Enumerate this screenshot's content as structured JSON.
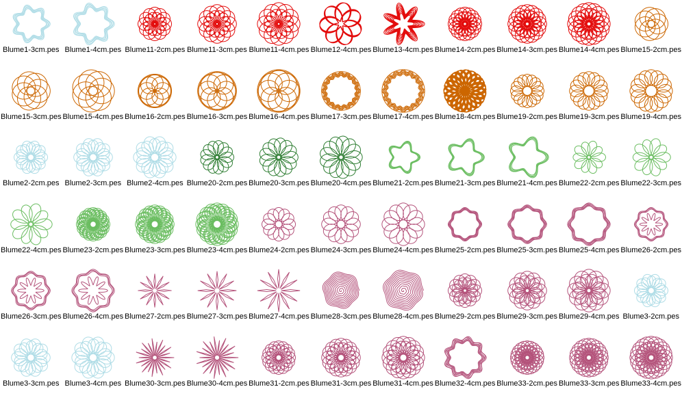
{
  "grid": {
    "columns": 11,
    "rows": 6,
    "file_extension": ".pes",
    "thumb_sizes": {
      "2": 52,
      "3": 60,
      "4": 66
    },
    "items": [
      "Blume1-3cm.pes",
      "Blume1-4cm.pes",
      "Blume11-2cm.pes",
      "Blume11-3cm.pes",
      "Blume11-4cm.pes",
      "Blume12-4cm.pes",
      "Blume13-4cm.pes",
      "Blume14-2cm.pes",
      "Blume14-3cm.pes",
      "Blume14-4cm.pes",
      "Blume15-2cm.pes",
      "Blume15-3cm.pes",
      "Blume15-4cm.pes",
      "Blume16-2cm.pes",
      "Blume16-3cm.pes",
      "Blume16-4cm.pes",
      "Blume17-3cm.pes",
      "Blume17-4cm.pes",
      "Blume18-4cm.pes",
      "Blume19-2cm.pes",
      "Blume19-3cm.pes",
      "Blume19-4cm.pes",
      "Blume2-2cm.pes",
      "Blume2-3cm.pes",
      "Blume2-4cm.pes",
      "Blume20-2cm.pes",
      "Blume20-3cm.pes",
      "Blume20-4cm.pes",
      "Blume21-2cm.pes",
      "Blume21-3cm.pes",
      "Blume21-4cm.pes",
      "Blume22-2cm.pes",
      "Blume22-3cm.pes",
      "Blume22-4cm.pes",
      "Blume23-2cm.pes",
      "Blume23-3cm.pes",
      "Blume23-4cm.pes",
      "Blume24-2cm.pes",
      "Blume24-3cm.pes",
      "Blume24-4cm.pes",
      "Blume25-2cm.pes",
      "Blume25-3cm.pes",
      "Blume25-4cm.pes",
      "Blume26-2cm.pes",
      "Blume26-3cm.pes",
      "Blume26-4cm.pes",
      "Blume27-2cm.pes",
      "Blume27-3cm.pes",
      "Blume27-4cm.pes",
      "Blume28-3cm.pes",
      "Blume28-4cm.pes",
      "Blume29-2cm.pes",
      "Blume29-3cm.pes",
      "Blume29-4cm.pes",
      "Blume3-2cm.pes",
      "Blume3-3cm.pes",
      "Blume3-4cm.pes",
      "Blume30-3cm.pes",
      "Blume30-4cm.pes",
      "Blume31-2cm.pes",
      "Blume31-3cm.pes",
      "Blume31-4cm.pes",
      "Blume32-4cm.pes",
      "Blume33-2cm.pes",
      "Blume33-3cm.pes",
      "Blume33-4cm.pes"
    ]
  },
  "palette": {
    "lightblue": "#AEDCE6",
    "red": "#E30B0B",
    "orange": "#CC6600",
    "darkgreen": "#2E7D32",
    "green": "#6ABD60",
    "maroon": "#B4537B"
  },
  "shape_colors": {
    "1": "lightblue",
    "2": "lightblue",
    "3": "lightblue",
    "11": "red",
    "12": "red",
    "13": "red",
    "14": "red",
    "15": "orange",
    "16": "orange",
    "17": "orange",
    "18": "orange",
    "19": "orange",
    "20": "darkgreen",
    "21": "green",
    "22": "green",
    "23": "green",
    "24": "maroon",
    "25": "maroon",
    "26": "maroon",
    "27": "maroon",
    "28": "maroon",
    "29": "maroon",
    "30": "maroon",
    "31": "maroon",
    "32": "maroon",
    "33": "maroon"
  },
  "shapes": {
    "1": {
      "type": "wavyring",
      "k": 7,
      "amp": 0.13,
      "passes": [
        {
          "s": 1,
          "ph": 0
        },
        {
          "s": 0.95,
          "ph": 0.12
        },
        {
          "s": 0.9,
          "ph": -0.1
        },
        {
          "s": 0.85,
          "ph": 0.06
        },
        {
          "s": 0.8,
          "ph": -0.05
        }
      ]
    },
    "2": {
      "type": "spiro",
      "r1": 0.6,
      "r2": 0.4,
      "n": 9,
      "passes": [
        {
          "rot": 0,
          "s": 1
        },
        {
          "rot": 0.314,
          "s": 0.88
        }
      ]
    },
    "3": {
      "type": "spiro",
      "r1": 0.6,
      "r2": 0.4,
      "n": 9,
      "passes": [
        {
          "rot": 0,
          "s": 1
        },
        {
          "rot": 0.35,
          "s": 0.87
        }
      ]
    },
    "11": {
      "type": "spiro",
      "r1": 0.54,
      "r2": 0.46,
      "n": 11,
      "passes": [
        {
          "rot": 0,
          "s": 1
        },
        {
          "rot": 0.26,
          "s": 0.7
        }
      ]
    },
    "12": {
      "type": "scribble",
      "turns": 13,
      "f": 2.33,
      "rmin": 0.12,
      "rmax": 1
    },
    "13": {
      "type": "wavyring",
      "k": 7,
      "amp": 0.27,
      "passes": [
        {
          "s": 1,
          "ph": 0
        },
        {
          "s": 0.93,
          "ph": 0.05
        },
        {
          "s": 0.86,
          "ph": -0.04
        },
        {
          "s": 0.79,
          "ph": 0.07
        },
        {
          "s": 0.72,
          "ph": -0.06
        },
        {
          "s": 0.65,
          "ph": 0.03
        },
        {
          "s": 0.58,
          "ph": -0.02
        },
        {
          "s": 0.51,
          "ph": 0.05
        }
      ]
    },
    "14": {
      "type": "spiro",
      "r1": 0.56,
      "r2": 0.44,
      "n": 15,
      "passes": [
        {
          "rot": 0,
          "s": 1
        },
        {
          "rot": 0.2,
          "s": 0.74
        }
      ]
    },
    "15": {
      "type": "circles",
      "n": 7,
      "rc": 0.6,
      "dc": 0.4,
      "rings": []
    },
    "16": {
      "type": "circles",
      "n": 8,
      "rc": 0.5,
      "dc": 0.47,
      "rings": [
        1,
        0.955
      ]
    },
    "17": {
      "type": "wavyring",
      "k": 16,
      "amp": 0.05,
      "passes": [
        {
          "s": 1,
          "amp": 0
        },
        {
          "s": 1,
          "ph": 0
        },
        {
          "s": 0.95,
          "ph": 0.1
        },
        {
          "s": 0.9,
          "ph": -0.08
        },
        {
          "s": 0.85,
          "ph": 0.05
        },
        {
          "s": 0.8,
          "ph": -0.04
        }
      ]
    },
    "18": {
      "type": "scribble",
      "turns": 26,
      "f": 3.17,
      "rmin": 0.04,
      "rmax": 1
    },
    "19": {
      "type": "spiro",
      "r1": 0.63,
      "r2": 0.37,
      "n": 15,
      "passes": [
        {
          "rot": 0,
          "s": 1
        }
      ]
    },
    "20": {
      "type": "spiro",
      "r1": 0.55,
      "r2": 0.45,
      "n": 5.5,
      "turns": 2,
      "passes": [
        {
          "rot": 0,
          "s": 1
        }
      ]
    },
    "21": {
      "type": "wavyring",
      "k": 5,
      "amp": 0.18,
      "passes": [
        {
          "s": 1,
          "ph": 0
        },
        {
          "s": 0.96,
          "ph": 0.07
        },
        {
          "s": 0.92,
          "ph": -0.06
        },
        {
          "s": 0.87,
          "ph": 0.03
        }
      ]
    },
    "22": {
      "type": "spiro",
      "r1": 0.55,
      "r2": 0.45,
      "n": 4,
      "passes": [
        {
          "rot": 0,
          "s": 1
        },
        {
          "rot": 0.628,
          "s": 0.94
        }
      ]
    },
    "23": {
      "type": "spiro",
      "r1": 0.6,
      "r2": 0.4,
      "n": 15,
      "passes": [
        {
          "rot": 0,
          "s": 1
        },
        {
          "rot": 0.131,
          "s": 0.93
        },
        {
          "rot": 0.262,
          "s": 0.86
        }
      ]
    },
    "24": {
      "type": "spiro",
      "r1": 0.6,
      "r2": 0.4,
      "n": 11,
      "passes": [
        {
          "rot": 0,
          "s": 1
        }
      ]
    },
    "25": {
      "type": "wavyring",
      "k": 8,
      "amp": 0.065,
      "passes": [
        {
          "s": 1,
          "ph": 0
        },
        {
          "s": 0.96,
          "ph": 0.25
        },
        {
          "s": 0.93,
          "ph": -0.2
        },
        {
          "s": 0.89,
          "ph": 0.1
        },
        {
          "s": 0.86,
          "ph": -0.12
        }
      ]
    },
    "26": {
      "type": "wavyring",
      "k": 8,
      "amp": 0.065,
      "passes": [
        {
          "s": 1,
          "ph": 0
        },
        {
          "s": 0.95,
          "ph": 0.2
        },
        {
          "s": 0.9,
          "ph": -0.15
        },
        {
          "s": 0.68,
          "ph": 0,
          "amp": 0.3,
          "k": 10
        }
      ]
    },
    "27": {
      "type": "spikes",
      "n": 12,
      "d": 0.09,
      "r0": 0.12,
      "len": 1
    },
    "28": {
      "type": "spiral",
      "turns": 11,
      "k": 6,
      "amp": 0.05
    },
    "29": {
      "type": "spiro",
      "r1": 0.56,
      "r2": 0.44,
      "n": 11,
      "passes": [
        {
          "rot": 0,
          "s": 1
        },
        {
          "rot": 0.26,
          "s": 0.78
        }
      ]
    },
    "30": {
      "type": "spikes",
      "n": 22,
      "d": 0.045,
      "r0": 0.1,
      "len": 1,
      "alt": 0.82
    },
    "31": {
      "type": "spiro",
      "r1": 0.6,
      "r2": 0.4,
      "n": 15,
      "passes": [
        {
          "rot": 0,
          "s": 1
        },
        {
          "rot": 0.19,
          "s": 0.78
        }
      ]
    },
    "32": {
      "type": "wavyring",
      "k": 9,
      "amp": 0.085,
      "passes": [
        {
          "s": 1,
          "ph": 0
        },
        {
          "s": 0.96,
          "ph": 0.3
        },
        {
          "s": 0.92,
          "ph": -0.25
        },
        {
          "s": 0.88,
          "ph": 0.15
        },
        {
          "s": 0.84,
          "ph": -0.1
        },
        {
          "s": 0.8,
          "ph": 0.05
        }
      ]
    },
    "33": {
      "type": "spiro",
      "r1": 0.58,
      "r2": 0.42,
      "n": 19,
      "passes": [
        {
          "rot": 0,
          "s": 1
        },
        {
          "rot": 0.15,
          "s": 0.76
        }
      ]
    }
  }
}
